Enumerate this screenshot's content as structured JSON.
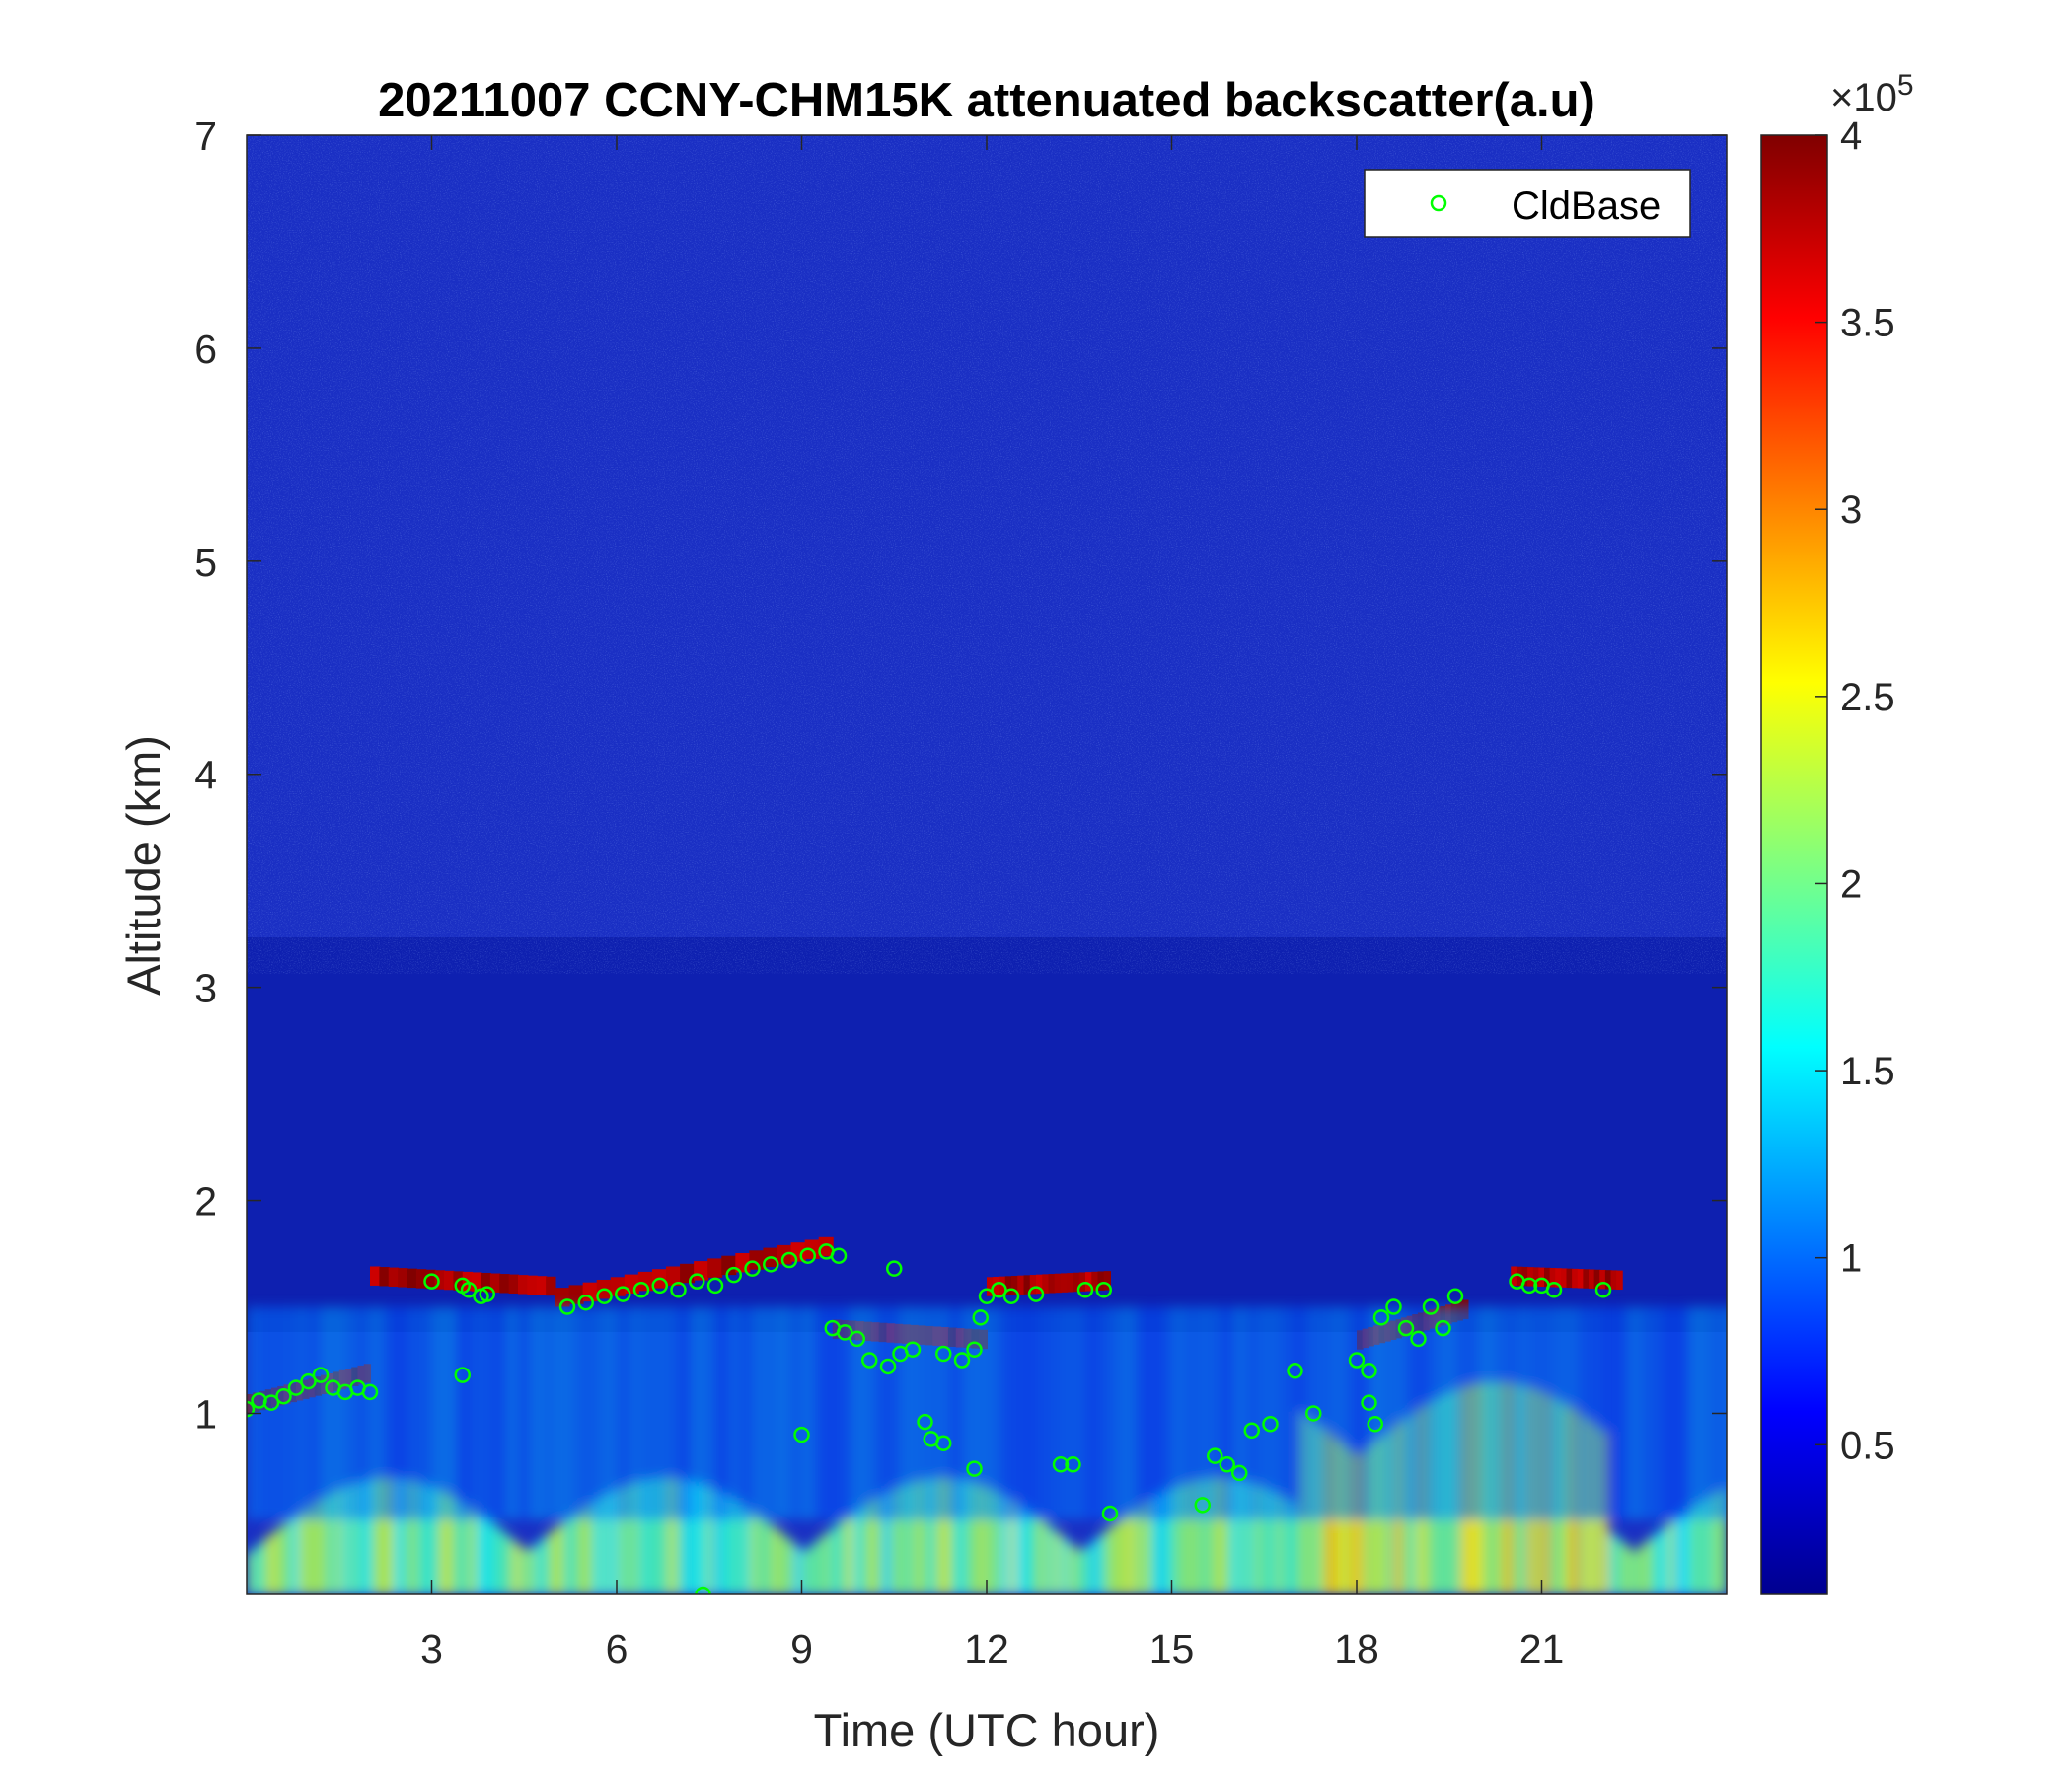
{
  "chart_data": {
    "type": "heatmap",
    "title": "20211007 CCNY-CHM15K attenuated backscatter(a.u)",
    "xlabel": "Time (UTC hour)",
    "ylabel": "Altitude (km)",
    "xlim": [
      0,
      24
    ],
    "ylim": [
      0.15,
      7
    ],
    "xticks": [
      3,
      6,
      9,
      12,
      15,
      18,
      21
    ],
    "yticks": [
      1,
      2,
      3,
      4,
      5,
      6,
      7
    ],
    "colormap": "jet",
    "colorbar": {
      "clim": [
        0.1,
        4.0
      ],
      "ticks": [
        0.5,
        1,
        1.5,
        2,
        2.5,
        3,
        3.5,
        4
      ],
      "tick_labels": [
        "0.5",
        "1",
        "1.5",
        "2",
        "2.5",
        "3",
        "3.5",
        "4"
      ],
      "exponent_base": "×10",
      "exponent_power": "5"
    },
    "legend": {
      "position": "top-right",
      "entries": [
        "CldBase"
      ]
    },
    "cloud_layers": [
      {
        "t0": 0.0,
        "t1": 2.0,
        "base_start": 1.0,
        "base_end": 1.15
      },
      {
        "t0": 2.0,
        "t1": 5.0,
        "base_start": 1.6,
        "base_end": 1.55
      },
      {
        "t0": 5.0,
        "t1": 9.5,
        "base_start": 1.5,
        "base_end": 1.75
      },
      {
        "t0": 9.5,
        "t1": 12.0,
        "base_start": 1.35,
        "base_end": 1.3
      },
      {
        "t0": 12.0,
        "t1": 14.0,
        "base_start": 1.55,
        "base_end": 1.58
      },
      {
        "t0": 18.0,
        "t1": 19.8,
        "base_start": 1.3,
        "base_end": 1.45
      },
      {
        "t0": 20.5,
        "t1": 22.3,
        "base_start": 1.6,
        "base_end": 1.58
      }
    ],
    "series": [
      {
        "name": "CldBase",
        "marker": "circle",
        "color": "#00ff00",
        "x": [
          0.0,
          0.2,
          0.4,
          0.6,
          0.8,
          1.0,
          1.2,
          1.4,
          1.6,
          1.8,
          2.0,
          3.0,
          3.5,
          3.6,
          3.8,
          3.9,
          5.2,
          5.5,
          5.8,
          6.1,
          6.4,
          6.7,
          7.0,
          7.3,
          7.6,
          7.9,
          8.2,
          8.5,
          8.8,
          9.1,
          9.4,
          9.6,
          9.5,
          9.7,
          9.9,
          10.1,
          10.4,
          10.6,
          10.8,
          11.3,
          11.6,
          11.8,
          11.9,
          12.0,
          12.2,
          12.4,
          12.8,
          13.6,
          13.9,
          3.5,
          10.5,
          11.0,
          11.1,
          11.3,
          9.0,
          7.4,
          11.8,
          13.2,
          13.4,
          14.0,
          15.5,
          15.7,
          15.9,
          16.1,
          16.3,
          16.6,
          17.0,
          17.3,
          18.0,
          18.2,
          18.4,
          18.6,
          18.8,
          19.0,
          19.2,
          19.4,
          19.6,
          18.2,
          18.3,
          20.6,
          20.8,
          21.0,
          21.2,
          22.0
        ],
        "y": [
          1.02,
          1.06,
          1.05,
          1.08,
          1.12,
          1.15,
          1.18,
          1.12,
          1.1,
          1.12,
          1.1,
          1.62,
          1.6,
          1.58,
          1.55,
          1.56,
          1.5,
          1.52,
          1.55,
          1.56,
          1.58,
          1.6,
          1.58,
          1.62,
          1.6,
          1.65,
          1.68,
          1.7,
          1.72,
          1.74,
          1.76,
          1.74,
          1.4,
          1.38,
          1.35,
          1.25,
          1.22,
          1.28,
          1.3,
          1.28,
          1.25,
          1.3,
          1.45,
          1.55,
          1.58,
          1.55,
          1.56,
          1.58,
          1.58,
          1.18,
          1.68,
          0.96,
          0.88,
          0.86,
          0.9,
          0.15,
          0.74,
          0.76,
          0.76,
          0.53,
          0.57,
          0.8,
          0.76,
          0.72,
          0.92,
          0.95,
          1.2,
          1.0,
          1.25,
          1.2,
          1.45,
          1.5,
          1.4,
          1.35,
          1.5,
          1.4,
          1.55,
          1.05,
          0.95,
          1.62,
          1.6,
          1.6,
          1.58,
          1.58
        ]
      }
    ]
  }
}
